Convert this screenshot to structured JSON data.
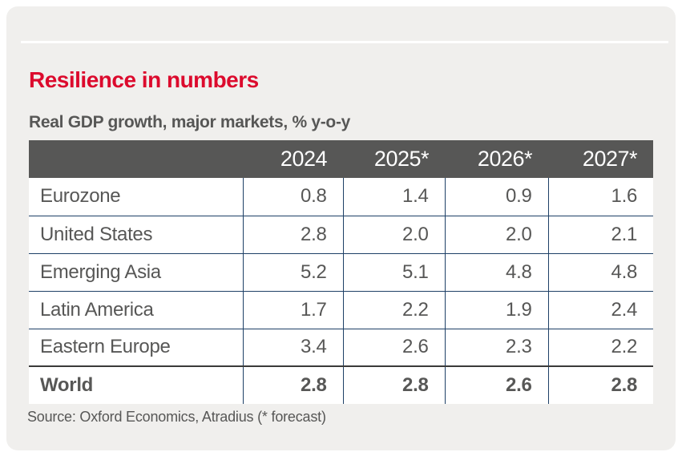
{
  "colors": {
    "accent_red": "#dc0a2d",
    "header_bar": "#575756",
    "text_gray": "#575756",
    "table_border_navy": "#1e4066",
    "world_row_border": "#3a3a39",
    "card_background": "#f0efed"
  },
  "chart_data": {
    "type": "table",
    "title": "Resilience in numbers",
    "subtitle": "Real GDP growth, major markets, % y-o-y",
    "columns": [
      "",
      "2024",
      "2025*",
      "2026*",
      "2027*"
    ],
    "rows": [
      {
        "label": "Eurozone",
        "values": [
          "0.8",
          "1.4",
          "0.9",
          "1.6"
        ]
      },
      {
        "label": "United States",
        "values": [
          "2.8",
          "2.0",
          "2.0",
          "2.1"
        ]
      },
      {
        "label": "Emerging Asia",
        "values": [
          "5.2",
          "5.1",
          "4.8",
          "4.8"
        ]
      },
      {
        "label": "Latin America",
        "values": [
          "1.7",
          "2.2",
          "1.9",
          "2.4"
        ]
      },
      {
        "label": "Eastern Europe",
        "values": [
          "3.4",
          "2.6",
          "2.3",
          "2.2"
        ]
      },
      {
        "label": "World",
        "values": [
          "2.8",
          "2.8",
          "2.6",
          "2.8"
        ]
      }
    ],
    "source": "Source: Oxford Economics, Atradius (* forecast)"
  }
}
